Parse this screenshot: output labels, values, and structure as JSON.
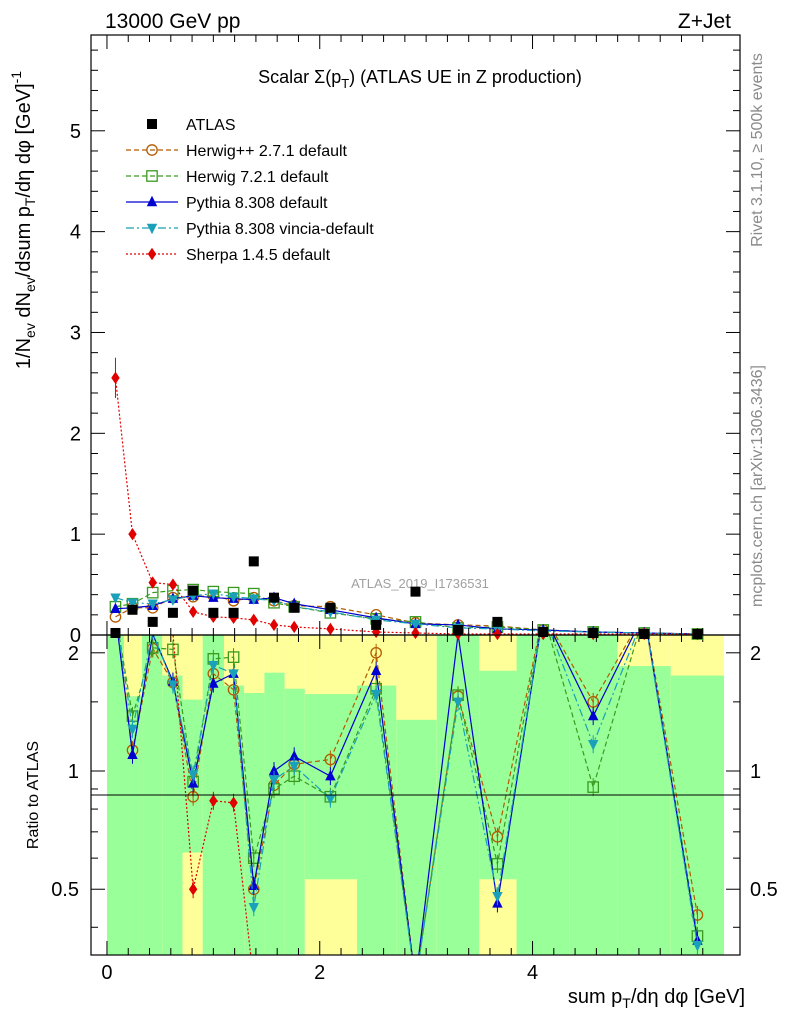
{
  "header": {
    "left": "13000 GeV pp",
    "right": "Z+Jet"
  },
  "side": {
    "top": "Rivet 3.1.10, ≥ 500k events",
    "bottom": "mcplots.cern.ch [arXiv:1306.3436]"
  },
  "watermark": "ATLAS_2019_I1736531",
  "chart_data": {
    "type": "line",
    "title": "Scalar Σ(pT) (ATLAS UE in Z production)",
    "xlabel": "sum pT/dη dφ [GeV]",
    "ylabel": "1/Nev dNev/dsum pT/dη dφ [GeV]^-1",
    "ratio_ylabel": "Ratio to ATLAS",
    "xlim": [
      -0.15,
      5.95
    ],
    "ylim": [
      0,
      5.95
    ],
    "ratio_ylim": [
      0.34,
      2.22
    ],
    "x_ticks": [
      "0",
      "2",
      "4"
    ],
    "y_ticks": [
      "0",
      "1",
      "2",
      "3",
      "4",
      "5"
    ],
    "ratio_ticks": [
      "0.5",
      "1",
      "2"
    ],
    "x": [
      0.08,
      0.24,
      0.43,
      0.62,
      0.81,
      1.0,
      1.19,
      1.38,
      1.57,
      1.76,
      2.1,
      2.53,
      2.9,
      3.3,
      3.67,
      4.1,
      4.57,
      5.05,
      5.55
    ],
    "atlas": [
      0.02,
      0.25,
      0.13,
      0.22,
      0.44,
      0.22,
      0.22,
      0.73,
      0.37,
      0.27,
      0.27,
      0.1,
      0.43,
      0.05,
      0.13,
      0.03,
      0.02,
      0.01,
      0.01
    ],
    "series": [
      {
        "name": "Herwig++ 2.7.1 default",
        "color": "#b35a00",
        "marker": "circle-open",
        "dash": "5,3",
        "values": [
          0.18,
          0.27,
          0.27,
          0.37,
          0.38,
          0.39,
          0.34,
          0.37,
          0.34,
          0.29,
          0.28,
          0.2,
          0.12,
          0.1,
          0.09,
          0.05,
          0.03,
          0.02,
          0.01
        ]
      },
      {
        "name": "Herwig 7.2.1 default",
        "color": "#3a9a20",
        "marker": "square-open",
        "dash": "5,3",
        "values": [
          0.28,
          0.31,
          0.42,
          0.44,
          0.45,
          0.43,
          0.42,
          0.41,
          0.32,
          0.28,
          0.22,
          0.16,
          0.13,
          0.07,
          0.08,
          0.05,
          0.03,
          0.02,
          0.01
        ]
      },
      {
        "name": "Pythia 8.308 default",
        "color": "#0000d0",
        "marker": "triangle-up",
        "dash": "",
        "values": [
          0.26,
          0.27,
          0.29,
          0.36,
          0.39,
          0.37,
          0.36,
          0.35,
          0.37,
          0.31,
          0.25,
          0.17,
          0.11,
          0.1,
          0.06,
          0.05,
          0.03,
          0.02,
          0.01
        ]
      },
      {
        "name": "Pythia 8.308 vincia-default",
        "color": "#1aa0b8",
        "marker": "triangle-down",
        "dash": "8,3,2,3",
        "values": [
          0.37,
          0.32,
          0.31,
          0.35,
          0.39,
          0.41,
          0.38,
          0.36,
          0.34,
          0.28,
          0.23,
          0.15,
          0.11,
          0.07,
          0.06,
          0.04,
          0.03,
          0.02,
          0.01
        ]
      },
      {
        "name": "Sherpa 1.4.5 default",
        "color": "#e00000",
        "marker": "diamond",
        "dash": "2,2",
        "values": [
          2.55,
          1.0,
          0.52,
          0.5,
          0.23,
          0.18,
          0.17,
          0.15,
          0.1,
          0.08,
          0.06,
          0.03,
          0.02,
          0.01,
          0.01,
          0.01,
          0.01,
          0.01,
          0.01
        ]
      }
    ],
    "ratio_series": [
      {
        "name": "Herwig++ 2.7.1 default",
        "values": [
          3.0,
          1.13,
          2.05,
          1.68,
          0.86,
          1.77,
          1.61,
          0.5,
          0.92,
          1.04,
          1.07,
          2.0,
          0.28,
          1.55,
          0.68,
          2.8,
          1.5,
          2.8,
          0.43
        ]
      },
      {
        "name": "Herwig 7.2.1 default",
        "values": [
          3.0,
          1.38,
          2.06,
          2.04,
          0.94,
          1.93,
          1.95,
          0.6,
          0.9,
          0.97,
          0.86,
          1.62,
          0.27,
          1.56,
          0.58,
          2.7,
          0.91,
          2.6,
          0.38
        ]
      },
      {
        "name": "Pythia 8.308 default",
        "values": [
          3.0,
          1.1,
          2.23,
          1.69,
          0.93,
          1.67,
          1.77,
          0.51,
          1.0,
          1.09,
          0.97,
          1.8,
          0.25,
          2.23,
          0.46,
          2.6,
          1.38,
          2.6,
          0.37
        ]
      },
      {
        "name": "Pythia 8.308 vincia-default",
        "values": [
          3.0,
          1.28,
          2.25,
          1.66,
          0.98,
          1.86,
          1.77,
          0.45,
          0.95,
          1.03,
          0.85,
          1.57,
          0.26,
          1.5,
          0.48,
          2.6,
          1.17,
          2.5,
          0.36
        ]
      },
      {
        "name": "Sherpa 1.4.5 default",
        "values": [
          3.0,
          3.0,
          3.0,
          2.25,
          0.5,
          0.84,
          0.83,
          0.2,
          0.2,
          0.2,
          0.2,
          0.2,
          0.2,
          0.2,
          0.2,
          0.2,
          0.2,
          0.2,
          0.2
        ]
      }
    ],
    "bands": {
      "edges": [
        0.0,
        0.16,
        0.33,
        0.52,
        0.71,
        0.9,
        1.1,
        1.29,
        1.48,
        1.67,
        1.86,
        2.35,
        2.72,
        3.1,
        3.5,
        3.85,
        4.35,
        4.8,
        5.3,
        5.8
      ],
      "green_lo": [
        0.34,
        0.34,
        0.34,
        0.34,
        0.62,
        0.34,
        0.34,
        0.34,
        0.34,
        0.34,
        0.53,
        0.34,
        0.34,
        0.34,
        0.53,
        0.34,
        0.34,
        0.34,
        0.34
      ],
      "green_hi": [
        2.22,
        1.55,
        2.22,
        1.75,
        1.52,
        2.22,
        1.65,
        1.58,
        1.78,
        1.62,
        1.57,
        1.65,
        1.35,
        2.22,
        1.8,
        2.22,
        2.22,
        1.85,
        1.75
      ],
      "yellow_lo": [
        0.34,
        0.34,
        0.34,
        0.34,
        0.34,
        0.34,
        0.34,
        0.34,
        0.34,
        0.34,
        0.34,
        0.34,
        0.34,
        0.34,
        0.34,
        0.34,
        0.34,
        0.34,
        0.34
      ],
      "yellow_hi": [
        2.22,
        2.22,
        2.22,
        2.22,
        2.22,
        2.22,
        2.22,
        2.22,
        2.22,
        2.22,
        2.22,
        2.22,
        2.22,
        2.22,
        2.22,
        2.22,
        2.22,
        2.22,
        2.22
      ]
    }
  }
}
